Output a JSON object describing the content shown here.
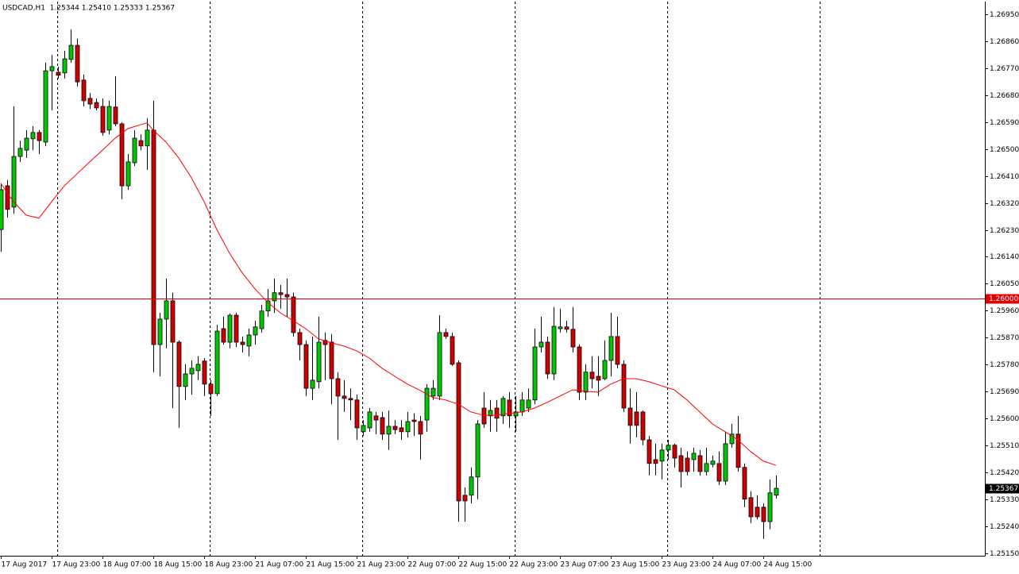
{
  "chart_data": {
    "type": "candlestick",
    "title": "USDCAD,H1  1.25344 1.25410 1.25333 1.25367",
    "categories": [
      "17 Aug 2017",
      null,
      null,
      null,
      null,
      null,
      null,
      null,
      "17 Aug 23:00",
      null,
      null,
      null,
      null,
      null,
      null,
      null,
      "18 Aug 07:00",
      null,
      null,
      null,
      null,
      null,
      null,
      null,
      "18 Aug 15:00",
      null,
      null,
      null,
      null,
      null,
      null,
      null,
      "18 Aug 23:00",
      null,
      null,
      null,
      null,
      null,
      null,
      null,
      "21 Aug 07:00",
      null,
      null,
      null,
      null,
      null,
      null,
      null,
      "21 Aug 15:00",
      null,
      null,
      null,
      null,
      null,
      null,
      null,
      "21 Aug 23:00",
      null,
      null,
      null,
      null,
      null,
      null,
      null,
      "22 Aug 07:00",
      null,
      null,
      null,
      null,
      null,
      null,
      null,
      "22 Aug 15:00",
      null,
      null,
      null,
      null,
      null,
      null,
      null,
      "22 Aug 23:00",
      null,
      null,
      null,
      null,
      null,
      null,
      null,
      "23 Aug 07:00",
      null,
      null,
      null,
      null,
      null,
      null,
      null,
      "23 Aug 15:00",
      null,
      null,
      null,
      null,
      null,
      null,
      null,
      "23 Aug 23:00",
      null,
      null,
      null,
      null,
      null,
      null,
      null,
      "24 Aug 07:00",
      null,
      null,
      null,
      null,
      null,
      null,
      null,
      "24 Aug 15:00",
      null,
      null
    ],
    "open": [
      1.26231,
      1.26377,
      1.26306,
      1.26475,
      1.26496,
      1.26534,
      1.26555,
      1.26523,
      1.26761,
      1.26756,
      1.26754,
      1.26799,
      1.26846,
      1.2673,
      1.26669,
      1.26655,
      1.26642,
      1.26563,
      1.2664,
      1.26584,
      1.26377,
      1.26454,
      1.26528,
      1.2651,
      1.26563,
      1.25847,
      1.25932,
      1.25993,
      1.25855,
      1.25707,
      1.25749,
      1.2576,
      1.25792,
      1.25715,
      1.25683,
      1.259,
      1.25855,
      1.25945,
      1.25855,
      1.25842,
      1.25879,
      1.259,
      1.25959,
      1.25993,
      1.2602,
      1.26014,
      1.26006,
      1.25887,
      1.25847,
      1.25701,
      1.25723,
      1.25861,
      1.25855,
      1.25733,
      1.25675,
      1.25667,
      1.25662,
      1.25556,
      1.25569,
      1.25609,
      1.25603,
      1.25548,
      1.25574,
      1.25569,
      1.25556,
      1.25595,
      1.2559,
      1.25595,
      1.25675,
      1.25675,
      1.25887,
      1.25874,
      1.25786,
      1.25344,
      1.25344,
      1.25405,
      1.25635,
      1.25609,
      1.25635,
      1.25609,
      1.25662,
      1.25609,
      1.25622,
      1.25635,
      1.25662,
      1.25839,
      1.25855,
      1.25749,
      1.259,
      1.25906,
      1.25898,
      1.25839,
      1.25688,
      1.25755,
      1.25741,
      1.25733,
      1.25794,
      1.25874,
      1.25781,
      1.25635,
      1.25622,
      1.25622,
      1.25529,
      1.25463,
      1.25458,
      1.25495,
      1.25511,
      1.25476,
      1.25468,
      1.25463,
      1.25476,
      1.25423,
      1.25447,
      1.2545,
      1.25391,
      1.25516,
      1.25548,
      1.25437,
      1.25336,
      1.25304,
      1.25304,
      1.25256,
      1.25344
    ],
    "high": [
      1.26385,
      1.26396,
      1.26642,
      1.26528,
      1.26563,
      1.26576,
      1.26563,
      1.26788,
      1.26814,
      1.26775,
      1.26828,
      1.26899,
      1.26868,
      1.26748,
      1.26687,
      1.26669,
      1.26669,
      1.26661,
      1.26743,
      1.26589,
      1.26483,
      1.26563,
      1.26549,
      1.26603,
      1.26661,
      1.25953,
      1.26067,
      1.2602,
      1.25861,
      1.25781,
      1.25794,
      1.25808,
      1.25802,
      1.25728,
      1.25913,
      1.2594,
      1.25951,
      1.25953,
      1.25874,
      1.259,
      1.25927,
      1.2598,
      1.26033,
      1.26067,
      1.26046,
      1.26067,
      1.2602,
      1.259,
      1.25861,
      1.25874,
      1.2594,
      1.25887,
      1.25882,
      1.25755,
      1.25728,
      1.25701,
      1.2568,
      1.25595,
      1.25635,
      1.25622,
      1.25622,
      1.25627,
      1.25595,
      1.25595,
      1.25622,
      1.25617,
      1.25609,
      1.25715,
      1.25728,
      1.25945,
      1.259,
      1.25887,
      1.25794,
      1.2537,
      1.25437,
      1.25595,
      1.25688,
      1.25662,
      1.25662,
      1.25675,
      1.25688,
      1.25675,
      1.25688,
      1.25701,
      1.259,
      1.2594,
      1.25874,
      1.25972,
      1.25967,
      1.25927,
      1.25972,
      1.25847,
      1.25781,
      1.25808,
      1.25808,
      1.25861,
      1.25953,
      1.2594,
      1.25794,
      1.25701,
      1.25688,
      1.25627,
      1.25542,
      1.25516,
      1.25516,
      1.25529,
      1.25516,
      1.25503,
      1.2549,
      1.25503,
      1.25495,
      1.25503,
      1.25476,
      1.2549,
      1.25556,
      1.25582,
      1.25609,
      1.2545,
      1.25357,
      1.25344,
      1.25317,
      1.25397,
      1.2541
    ],
    "low": [
      1.26157,
      1.26271,
      1.26284,
      1.26457,
      1.2647,
      1.26496,
      1.26483,
      1.2651,
      1.26629,
      1.26735,
      1.26735,
      1.26788,
      1.26709,
      1.26642,
      1.26634,
      1.26629,
      1.26544,
      1.26549,
      1.26576,
      1.26332,
      1.26364,
      1.26443,
      1.26496,
      1.2643,
      1.25755,
      1.25741,
      1.25834,
      1.25635,
      1.25569,
      1.25662,
      1.2568,
      1.25728,
      1.25675,
      1.25609,
      1.25675,
      1.25847,
      1.25834,
      1.25839,
      1.25821,
      1.25808,
      1.25847,
      1.25887,
      1.2594,
      1.25953,
      1.25967,
      1.2594,
      1.25874,
      1.25794,
      1.25675,
      1.25662,
      1.25701,
      1.25728,
      1.25648,
      1.25529,
      1.25622,
      1.25595,
      1.25529,
      1.25542,
      1.25556,
      1.25548,
      1.25529,
      1.25495,
      1.25548,
      1.25529,
      1.25537,
      1.25542,
      1.25463,
      1.25556,
      1.25662,
      1.25662,
      1.25866,
      1.25776,
      1.25256,
      1.25256,
      1.25317,
      1.25331,
      1.25569,
      1.25556,
      1.25556,
      1.25582,
      1.25569,
      1.25556,
      1.25609,
      1.25622,
      1.25648,
      1.25821,
      1.25733,
      1.25728,
      1.25887,
      1.25887,
      1.25821,
      1.25662,
      1.25662,
      1.25701,
      1.25675,
      1.25728,
      1.25741,
      1.25768,
      1.25622,
      1.25516,
      1.25537,
      1.25511,
      1.2541,
      1.2541,
      1.25397,
      1.25463,
      1.25437,
      1.2537,
      1.2541,
      1.25423,
      1.2541,
      1.2541,
      1.25437,
      1.25378,
      1.25378,
      1.25503,
      1.25423,
      1.25304,
      1.25251,
      1.25264,
      1.25198,
      1.2523,
      1.25333
    ],
    "close": [
      1.26364,
      1.26298,
      1.26475,
      1.26502,
      1.26536,
      1.26555,
      1.26528,
      1.26761,
      1.26775,
      1.26746,
      1.26801,
      1.26846,
      1.26724,
      1.26661,
      1.2665,
      1.26637,
      1.26555,
      1.26642,
      1.26584,
      1.26377,
      1.26457,
      1.26536,
      1.2651,
      1.26563,
      1.25847,
      1.25932,
      1.25993,
      1.25855,
      1.25707,
      1.25749,
      1.25768,
      1.25781,
      1.25715,
      1.25683,
      1.25892,
      1.25855,
      1.25945,
      1.25855,
      1.25847,
      1.25879,
      1.25906,
      1.25959,
      1.25993,
      1.2602,
      1.26014,
      1.26006,
      1.25887,
      1.25847,
      1.25701,
      1.25728,
      1.25855,
      1.25847,
      1.25733,
      1.25675,
      1.25667,
      1.25662,
      1.25569,
      1.25577,
      1.25622,
      1.25595,
      1.25548,
      1.25574,
      1.25563,
      1.25556,
      1.2559,
      1.2559,
      1.25548,
      1.25701,
      1.25701,
      1.25887,
      1.25874,
      1.25781,
      1.25325,
      1.25325,
      1.25405,
      1.25582,
      1.25582,
      1.25627,
      1.25601,
      1.25667,
      1.25609,
      1.25622,
      1.25662,
      1.25662,
      1.25839,
      1.25855,
      1.25749,
      1.25908,
      1.25906,
      1.25898,
      1.25839,
      1.25688,
      1.25755,
      1.25733,
      1.25728,
      1.25794,
      1.25874,
      1.25781,
      1.25635,
      1.25577,
      1.25577,
      1.25529,
      1.2545,
      1.2545,
      1.25495,
      1.25511,
      1.25468,
      1.25423,
      1.25423,
      1.25484,
      1.25423,
      1.2545,
      1.25458,
      1.25391,
      1.25516,
      1.25548,
      1.25437,
      1.25331,
      1.25272,
      1.25272,
      1.25256,
      1.25352,
      1.25367
    ],
    "up_color": "#00c800",
    "down_color": "#d00000",
    "ma": {
      "color": "#ff0000",
      "x": [
        0,
        2,
        4,
        6,
        8,
        10,
        12,
        14,
        16,
        18,
        20,
        22,
        23,
        24,
        26,
        28,
        30,
        32,
        34,
        36,
        38,
        40,
        42,
        44,
        46,
        48,
        50,
        52,
        54,
        56,
        58,
        60,
        62,
        64,
        66,
        68,
        70,
        72,
        74,
        76,
        78,
        80,
        82,
        84,
        86,
        88,
        90,
        92,
        94,
        96,
        98,
        100,
        102,
        104,
        106,
        108,
        110,
        112,
        114,
        116,
        118,
        120,
        122
      ],
      "values": [
        1.26385,
        1.26324,
        1.26279,
        1.26269,
        1.26324,
        1.26377,
        1.26417,
        1.26457,
        1.26496,
        1.26536,
        1.26568,
        1.26581,
        1.26587,
        1.26563,
        1.26523,
        1.2647,
        1.26404,
        1.26324,
        1.26231,
        1.26152,
        1.26086,
        1.26033,
        1.25988,
        1.25953,
        1.25927,
        1.259,
        1.25866,
        1.25853,
        1.25842,
        1.25826,
        1.25802,
        1.25768,
        1.25741,
        1.25715,
        1.25694,
        1.2567,
        1.25662,
        1.25648,
        1.25622,
        1.25611,
        1.25611,
        1.25617,
        1.25622,
        1.25635,
        1.25654,
        1.25675,
        1.25696,
        1.25691,
        1.25688,
        1.25715,
        1.25733,
        1.25733,
        1.25723,
        1.25709,
        1.25696,
        1.25662,
        1.25622,
        1.25582,
        1.25556,
        1.25529,
        1.2549,
        1.25458,
        1.25444
      ]
    },
    "hline": {
      "value": 1.26,
      "label": "1.26000",
      "color": "#e00000"
    },
    "last_price": {
      "value": 1.25367,
      "label": "1.25367"
    },
    "ylim": [
      1.25142,
      1.26992
    ],
    "yticks": [
      {
        "value": 1.2695,
        "label": "1.26950"
      },
      {
        "value": 1.2686,
        "label": "1.26860"
      },
      {
        "value": 1.2677,
        "label": "1.26770"
      },
      {
        "value": 1.2668,
        "label": "1.26680"
      },
      {
        "value": 1.2659,
        "label": "1.26590"
      },
      {
        "value": 1.265,
        "label": "1.26500"
      },
      {
        "value": 1.2641,
        "label": "1.26410"
      },
      {
        "value": 1.2632,
        "label": "1.26320"
      },
      {
        "value": 1.2623,
        "label": "1.26230"
      },
      {
        "value": 1.2614,
        "label": "1.26140"
      },
      {
        "value": 1.2605,
        "label": "1.26050"
      },
      {
        "value": 1.2596,
        "label": "1.25960"
      },
      {
        "value": 1.2587,
        "label": "1.25870"
      },
      {
        "value": 1.2578,
        "label": "1.25780"
      },
      {
        "value": 1.2569,
        "label": "1.25690"
      },
      {
        "value": 1.256,
        "label": "1.25600"
      },
      {
        "value": 1.2551,
        "label": "1.25510"
      },
      {
        "value": 1.2542,
        "label": "1.25420"
      },
      {
        "value": 1.2533,
        "label": "1.25330"
      },
      {
        "value": 1.2524,
        "label": "1.25240"
      },
      {
        "value": 1.2515,
        "label": "1.25150"
      }
    ]
  }
}
